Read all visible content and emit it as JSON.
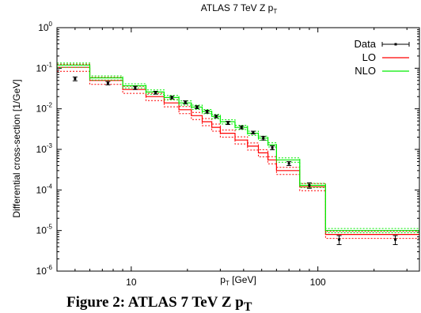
{
  "chart_data": {
    "type": "line",
    "title": "ATLAS 7 TeV Z p",
    "title_sub": "T",
    "xlabel": "p",
    "xlabel_sub": "T",
    "xlabel_unit": " [GeV]",
    "ylabel": "Differential cross-section [1/GeV]",
    "xscale": "log",
    "yscale": "log",
    "xlim": [
      4,
      350
    ],
    "ylim": [
      1e-06,
      1
    ],
    "xticks": [
      10,
      100
    ],
    "xtick_labels": [
      "10",
      "100"
    ],
    "yticks": [
      1e-06,
      1e-05,
      0.0001,
      0.001,
      0.01,
      0.1,
      1
    ],
    "ytick_base": "10",
    "ytick_exponents": [
      "-6",
      "-5",
      "-4",
      "-3",
      "-2",
      "-1",
      "0"
    ],
    "grid": false,
    "legend_position": "top-right",
    "bin_edges": [
      4,
      6,
      9,
      12,
      15,
      18,
      21,
      24,
      27,
      30,
      36,
      42,
      48,
      54,
      60,
      80,
      110,
      200,
      350
    ],
    "series": [
      {
        "name": "Data",
        "style": "points-with-errorbars",
        "color": "#000000",
        "x": [
          5,
          7.5,
          10.5,
          13.5,
          16.5,
          19.5,
          22.5,
          25.5,
          28.5,
          33,
          39,
          45,
          51,
          57,
          70,
          90,
          130,
          260
        ],
        "y": [
          0.055,
          0.043,
          0.033,
          0.025,
          0.019,
          0.0145,
          0.011,
          0.0085,
          0.0065,
          0.0045,
          0.0035,
          0.0026,
          0.0019,
          0.0011,
          0.00045,
          0.00013,
          6e-06,
          6e-06
        ],
        "y_err_low": [
          0.006,
          0.004,
          0.003,
          0.002,
          0.0015,
          0.0012,
          0.0009,
          0.0007,
          0.0005,
          0.0004,
          0.0003,
          0.0002,
          0.0002,
          0.00012,
          5e-05,
          2e-05,
          1.5e-06,
          1.5e-06
        ],
        "y_err_high": [
          0.006,
          0.004,
          0.003,
          0.002,
          0.0015,
          0.0012,
          0.0009,
          0.0007,
          0.0005,
          0.0004,
          0.0003,
          0.0002,
          0.0002,
          0.00012,
          5e-05,
          2e-05,
          1.5e-06,
          1.5e-06
        ]
      },
      {
        "name": "LO",
        "style": "step-with-band",
        "color": "#ff0000",
        "values": [
          0.105,
          0.05,
          0.03,
          0.02,
          0.014,
          0.0095,
          0.0068,
          0.0048,
          0.0035,
          0.0025,
          0.0017,
          0.0012,
          0.00082,
          0.00055,
          0.0003,
          0.00012,
          8e-06,
          8e-06
        ],
        "band_low_factor": 0.8,
        "band_high_factor": 1.2
      },
      {
        "name": "NLO",
        "style": "step-with-band",
        "color": "#00ee00",
        "values": [
          0.12,
          0.058,
          0.037,
          0.026,
          0.019,
          0.014,
          0.011,
          0.0086,
          0.0065,
          0.0048,
          0.0035,
          0.0025,
          0.0019,
          0.0013,
          0.00055,
          0.00013,
          1e-05,
          1e-05
        ],
        "band_low_factor": 0.88,
        "band_high_factor": 1.12
      }
    ]
  },
  "caption": "Figure 2: ATLAS 7 TeV Z p",
  "caption_sub": "T"
}
